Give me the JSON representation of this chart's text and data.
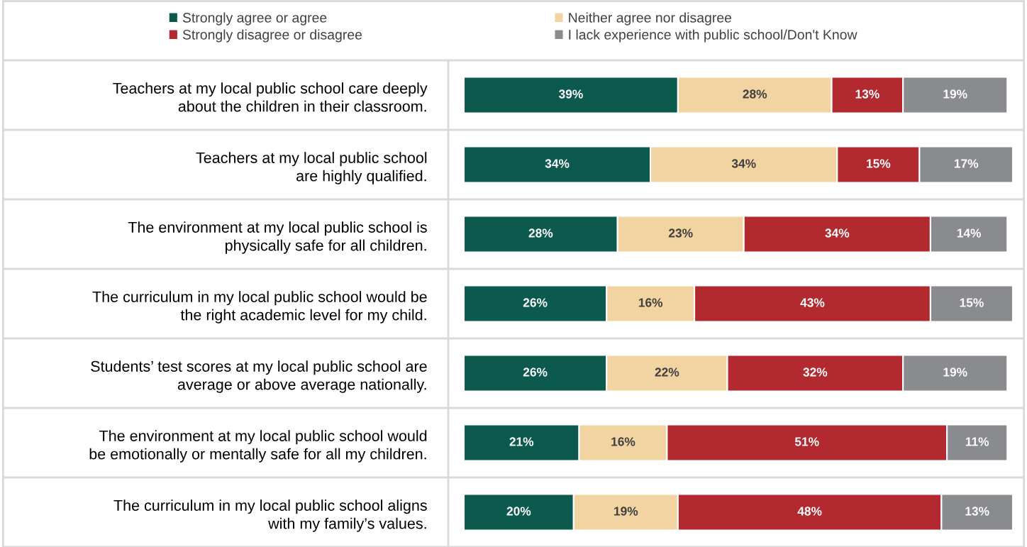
{
  "chart_data": {
    "type": "bar",
    "orientation": "horizontal",
    "stacked": true,
    "legend": "top",
    "tick_labels": "y",
    "grid": false,
    "categories": [
      "Teachers at my local public school care deeply\nabout the children in their classroom.",
      "Teachers at my local public school\nare highly qualified.",
      "The environment at my local public school is\nphysically safe for all children.",
      "The curriculum in my local public school would be\nthe right academic level for my child.",
      "Students’ test scores at my local public school are\naverage or above average nationally.",
      "The environment at my local public school would\nbe emotionally or mentally safe for all my children.",
      "The curriculum in my local public school aligns\nwith my family’s values."
    ],
    "series": [
      {
        "name": "Strongly agree or agree",
        "color": "#0b5a4d",
        "values": [
          39,
          34,
          28,
          26,
          26,
          21,
          20
        ],
        "value_labels": [
          "39%",
          "34%",
          "28%",
          "26%",
          "26%",
          "21%",
          "20%"
        ]
      },
      {
        "name": "Neither agree nor disagree",
        "color": "#f2d3a2",
        "values": [
          28,
          34,
          23,
          16,
          22,
          16,
          19
        ],
        "value_labels": [
          "28%",
          "34%",
          "23%",
          "16%",
          "22%",
          "16%",
          "19%"
        ]
      },
      {
        "name": "Strongly disagree or disagree",
        "color": "#b22a30",
        "values": [
          13,
          15,
          34,
          43,
          32,
          51,
          48
        ],
        "value_labels": [
          "13%",
          "15%",
          "34%",
          "43%",
          "32%",
          "51%",
          "48%"
        ]
      },
      {
        "name": "I lack experience with public school/Don't Know",
        "color": "#898b8e",
        "values": [
          19,
          17,
          14,
          15,
          19,
          11,
          13
        ],
        "value_labels": [
          "19%",
          "17%",
          "14%",
          "15%",
          "19%",
          "11%",
          "13%"
        ]
      }
    ]
  }
}
